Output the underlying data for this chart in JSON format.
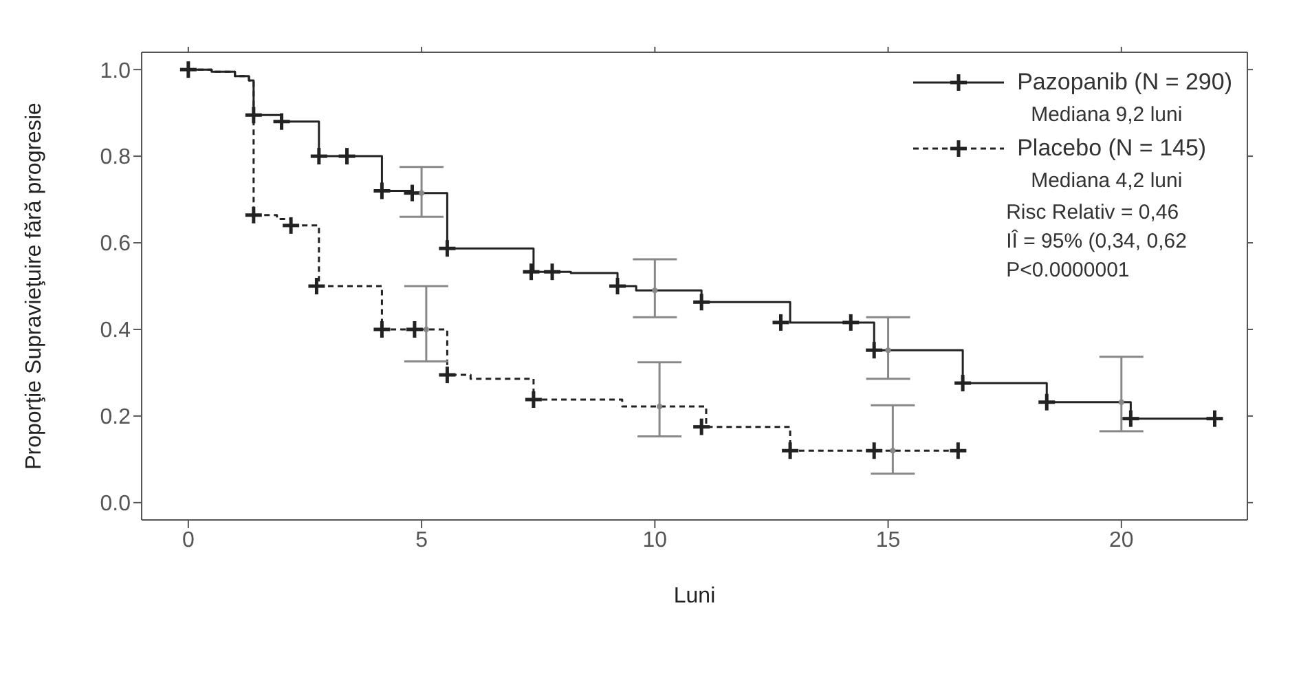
{
  "chart_data": {
    "type": "step",
    "xlabel": "Luni",
    "ylabel": "Proporţie Supravieţuire fără progresie",
    "xlim": [
      -1,
      22.7
    ],
    "ylim": [
      -0.04,
      1.04
    ],
    "xticks": [
      0,
      5,
      10,
      15,
      20
    ],
    "yticks": [
      {
        "value": 0,
        "label": "0.0"
      },
      {
        "value": 0.2,
        "label": "0.2"
      },
      {
        "value": 0.4,
        "label": "0.4"
      },
      {
        "value": 0.6,
        "label": "0.6"
      },
      {
        "value": 0.8,
        "label": "0.8"
      },
      {
        "value": 1,
        "label": "1.0"
      }
    ],
    "grid": false,
    "legend": "top right",
    "annotations": [
      "Mediana 9,2 luni",
      "Mediana 4,2 luni",
      "Risc Relativ = 0,46",
      "IÎ = 95% (0,34, 0,62",
      "P<0.0000001"
    ],
    "series": [
      {
        "name": "Pazopanib (N = 290)",
        "color": "#222222",
        "line_style": "solid",
        "x": [
          0,
          0.5,
          1,
          1.3,
          1.4,
          2,
          2.8,
          4.15,
          4.8,
          5.55,
          7.4,
          8.2,
          9.2,
          9.6,
          11,
          12.9,
          14.7,
          16.6,
          18.4,
          20.2,
          22
        ],
        "values": [
          1,
          0.995,
          0.985,
          0.975,
          0.895,
          0.88,
          0.8,
          0.72,
          0.715,
          0.587,
          0.533,
          0.53,
          0.5,
          0.49,
          0.463,
          0.416,
          0.352,
          0.276,
          0.232,
          0.194,
          0.194
        ]
      },
      {
        "name": "Placebo (N = 145)",
        "color": "#222222",
        "line_style": "dashed",
        "x": [
          0,
          0.5,
          1,
          1.3,
          1.4,
          1.9,
          2.2,
          2.8,
          4.15,
          5.55,
          6.05,
          7.4,
          9.3,
          11.1,
          12.9,
          16.5
        ],
        "values": [
          1,
          0.995,
          0.985,
          0.975,
          0.664,
          0.655,
          0.64,
          0.5,
          0.4,
          0.295,
          0.286,
          0.238,
          0.222,
          0.175,
          0.12,
          0.12
        ]
      },
      {
        "type": "scatter",
        "marker": "cross",
        "color": "#222222",
        "x": [
          0,
          1.4,
          2,
          2.8,
          3.4,
          4.15,
          4.8,
          5.55,
          7.35,
          7.8,
          9.2,
          11,
          12.7,
          14.2,
          14.7,
          16.6,
          18.4,
          20.2,
          22
        ],
        "values": [
          1,
          0.895,
          0.88,
          0.8,
          0.8,
          0.72,
          0.715,
          0.587,
          0.533,
          0.533,
          0.5,
          0.463,
          0.416,
          0.416,
          0.352,
          0.276,
          0.232,
          0.194,
          0.194
        ]
      },
      {
        "type": "scatter",
        "marker": "cross",
        "color": "#222222",
        "x": [
          1.4,
          2.2,
          2.75,
          4.15,
          4.85,
          5.55,
          7.4,
          11,
          12.9,
          14.7,
          16.5
        ],
        "values": [
          0.664,
          0.64,
          0.5,
          0.4,
          0.4,
          0.295,
          0.238,
          0.175,
          0.12,
          0.12,
          0.12
        ]
      },
      {
        "type": "scatter",
        "marker": "circle",
        "color": "#888888",
        "x": [
          5,
          10,
          15,
          20
        ],
        "values": [
          0.715,
          0.49,
          0.352,
          0.232
        ],
        "errors": [
          [
            0.66,
            0.775
          ],
          [
            0.428,
            0.562
          ],
          [
            0.286,
            0.428
          ],
          [
            0.165,
            0.337
          ]
        ]
      },
      {
        "type": "scatter",
        "marker": "circle",
        "color": "#888888",
        "x": [
          5.1,
          10.1,
          15.1
        ],
        "values": [
          0.4,
          0.222,
          0.12
        ],
        "errors": [
          [
            0.326,
            0.5
          ],
          [
            0.153,
            0.324
          ],
          [
            0.067,
            0.225
          ]
        ]
      }
    ]
  }
}
